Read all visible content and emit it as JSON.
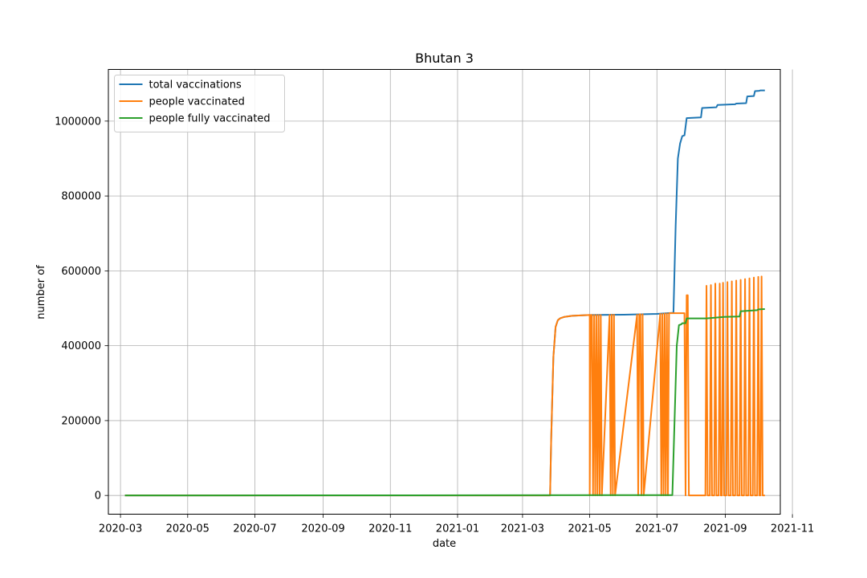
{
  "chart_data": {
    "type": "line",
    "title": "Bhutan 3",
    "xlabel": "date",
    "ylabel": "number of",
    "grid": true,
    "legend_position": "top-left",
    "x_type": "date",
    "xlim": [
      "2020-02-19",
      "2021-10-21"
    ],
    "ylim": [
      -50000,
      1138000
    ],
    "x_ticks": [
      "2020-03-01",
      "2020-05-01",
      "2020-07-01",
      "2020-09-01",
      "2020-11-01",
      "2021-01-01",
      "2021-03-01",
      "2021-05-01",
      "2021-07-01",
      "2021-09-01",
      "2021-11-01"
    ],
    "x_tick_labels": [
      "2020-03",
      "2020-05",
      "2020-07",
      "2020-09",
      "2020-11",
      "2021-01",
      "2021-03",
      "2021-05",
      "2021-07",
      "2021-09",
      "2021-11"
    ],
    "y_ticks": [
      0,
      200000,
      400000,
      600000,
      800000,
      1000000
    ],
    "y_tick_labels": [
      "0",
      "200000",
      "400000",
      "600000",
      "800000",
      "1000000"
    ],
    "series": [
      {
        "name": "total vaccinations",
        "color": "#1f77b4",
        "x": [
          "2020-03-05",
          "2021-03-26",
          "2021-03-27",
          "2021-03-29",
          "2021-03-31",
          "2021-04-02",
          "2021-04-04",
          "2021-04-08",
          "2021-04-15",
          "2021-05-01",
          "2021-06-01",
          "2021-07-01",
          "2021-07-16",
          "2021-07-18",
          "2021-07-20",
          "2021-07-22",
          "2021-07-24",
          "2021-07-26",
          "2021-07-28",
          "2021-08-10",
          "2021-08-11",
          "2021-08-24",
          "2021-08-25",
          "2021-09-10",
          "2021-09-11",
          "2021-09-20",
          "2021-09-21",
          "2021-09-27",
          "2021-09-28",
          "2021-10-02",
          "2021-10-03",
          "2021-10-07"
        ],
        "y": [
          0,
          0,
          150000,
          370000,
          450000,
          468000,
          473000,
          477000,
          480000,
          482000,
          483000,
          485000,
          488000,
          720000,
          900000,
          940000,
          960000,
          962000,
          1008000,
          1010000,
          1035000,
          1037000,
          1043000,
          1045000,
          1047000,
          1048000,
          1066000,
          1067000,
          1080000,
          1081000,
          1082000,
          1082000
        ]
      },
      {
        "name": "people vaccinated",
        "color": "#ff7f0e",
        "x": [
          "2020-03-05",
          "2021-03-26",
          "2021-03-27",
          "2021-03-29",
          "2021-03-31",
          "2021-04-02",
          "2021-04-04",
          "2021-04-08",
          "2021-04-15",
          "2021-05-01",
          "2021-05-01",
          "2021-05-02",
          "2021-05-03",
          "2021-05-04",
          "2021-05-05",
          "2021-05-06",
          "2021-05-07",
          "2021-05-08",
          "2021-05-09",
          "2021-05-10",
          "2021-05-11",
          "2021-05-12",
          "2021-05-19",
          "2021-05-20",
          "2021-05-21",
          "2021-05-22",
          "2021-05-23",
          "2021-05-24",
          "2021-06-13",
          "2021-06-14",
          "2021-06-15",
          "2021-06-16",
          "2021-06-17",
          "2021-06-18",
          "2021-06-19",
          "2021-07-04",
          "2021-07-05",
          "2021-07-06",
          "2021-07-07",
          "2021-07-08",
          "2021-07-09",
          "2021-07-10",
          "2021-07-11",
          "2021-07-12",
          "2021-07-26",
          "2021-07-27",
          "2021-07-28",
          "2021-07-29",
          "2021-07-30",
          "2021-07-31",
          "2021-08-01",
          "2021-08-14",
          "2021-08-15",
          "2021-08-16",
          "2021-08-17",
          "2021-08-18",
          "2021-08-19",
          "2021-08-20",
          "2021-08-21",
          "2021-08-22",
          "2021-08-23",
          "2021-08-24",
          "2021-08-25",
          "2021-08-26",
          "2021-08-27",
          "2021-08-28",
          "2021-08-29",
          "2021-08-30",
          "2021-08-31",
          "2021-09-01",
          "2021-09-02",
          "2021-09-03",
          "2021-09-04",
          "2021-09-05",
          "2021-09-06",
          "2021-09-07",
          "2021-09-08",
          "2021-09-09",
          "2021-09-10",
          "2021-09-11",
          "2021-09-12",
          "2021-09-13",
          "2021-09-14",
          "2021-09-15",
          "2021-09-16",
          "2021-09-17",
          "2021-09-18",
          "2021-09-19",
          "2021-09-20",
          "2021-09-21",
          "2021-09-22",
          "2021-09-23",
          "2021-09-24",
          "2021-09-25",
          "2021-09-26",
          "2021-09-27",
          "2021-09-28",
          "2021-09-29",
          "2021-09-30",
          "2021-10-01",
          "2021-10-02",
          "2021-10-03",
          "2021-10-04",
          "2021-10-05",
          "2021-10-06",
          "2021-10-07"
        ],
        "y": [
          0,
          0,
          150000,
          370000,
          450000,
          468000,
          473000,
          477000,
          480000,
          482000,
          0,
          482000,
          482000,
          0,
          482000,
          0,
          482000,
          0,
          482000,
          0,
          482000,
          0,
          482000,
          0,
          483000,
          0,
          483000,
          0,
          483000,
          0,
          484000,
          484000,
          0,
          484000,
          0,
          485000,
          0,
          485000,
          0,
          486000,
          0,
          486000,
          0,
          487000,
          487000,
          0,
          535000,
          535000,
          0,
          0,
          0,
          0,
          560000,
          0,
          0,
          0,
          562000,
          0,
          0,
          0,
          566000,
          0,
          0,
          0,
          566000,
          0,
          0,
          568000,
          0,
          0,
          0,
          570000,
          0,
          0,
          0,
          572000,
          0,
          0,
          0,
          574000,
          0,
          0,
          0,
          576000,
          0,
          0,
          0,
          578000,
          0,
          0,
          0,
          580000,
          0,
          0,
          0,
          582000,
          0,
          0,
          0,
          584000,
          0,
          0,
          585000,
          0,
          0,
          0
        ]
      },
      {
        "name": "people fully vaccinated",
        "color": "#2ca02c",
        "x": [
          "2020-03-05",
          "2021-07-15",
          "2021-07-17",
          "2021-07-19",
          "2021-07-21",
          "2021-07-23",
          "2021-07-24",
          "2021-07-27",
          "2021-07-28",
          "2021-08-15",
          "2021-08-31",
          "2021-09-14",
          "2021-09-15",
          "2021-09-30",
          "2021-10-01",
          "2021-10-07"
        ],
        "y": [
          0,
          1000,
          200000,
          400000,
          455000,
          457000,
          460000,
          460000,
          473000,
          473000,
          477000,
          478000,
          492000,
          495000,
          497000,
          498000
        ]
      }
    ]
  }
}
